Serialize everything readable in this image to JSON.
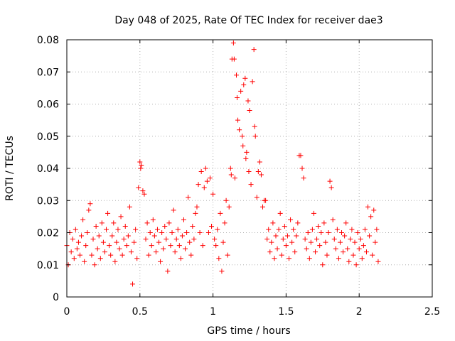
{
  "chart_data": {
    "type": "scatter",
    "title": "Day 048 of 2025, Rate Of TEC Index for receiver dae3",
    "xlabel": "GPS time / hours",
    "ylabel": "ROTI / TECUs",
    "xlim": [
      0,
      2.5
    ],
    "ylim": [
      0,
      0.08
    ],
    "x_ticks": [
      0,
      0.5,
      1,
      1.5,
      2,
      2.5
    ],
    "x_tick_labels": [
      "0",
      "0.5",
      "1",
      "1.5",
      "2",
      "2.5"
    ],
    "y_ticks": [
      0,
      0.01,
      0.02,
      0.03,
      0.04,
      0.05,
      0.06,
      0.07,
      0.08
    ],
    "y_tick_labels": [
      "0",
      "0.01",
      "0.02",
      "0.03",
      "0.04",
      "0.05",
      "0.06",
      "0.07",
      "0.08"
    ],
    "grid": true,
    "marker": "+",
    "color": "#ff0000",
    "series": [
      {
        "name": "ROTI",
        "points": [
          [
            0.0,
            0.016
          ],
          [
            0.01,
            0.01
          ],
          [
            0.02,
            0.02
          ],
          [
            0.03,
            0.014
          ],
          [
            0.04,
            0.018
          ],
          [
            0.05,
            0.012
          ],
          [
            0.06,
            0.021
          ],
          [
            0.07,
            0.015
          ],
          [
            0.08,
            0.017
          ],
          [
            0.09,
            0.013
          ],
          [
            0.1,
            0.019
          ],
          [
            0.11,
            0.024
          ],
          [
            0.12,
            0.011
          ],
          [
            0.13,
            0.016
          ],
          [
            0.14,
            0.02
          ],
          [
            0.15,
            0.027
          ],
          [
            0.16,
            0.029
          ],
          [
            0.17,
            0.013
          ],
          [
            0.18,
            0.018
          ],
          [
            0.19,
            0.01
          ],
          [
            0.2,
            0.022
          ],
          [
            0.21,
            0.015
          ],
          [
            0.22,
            0.019
          ],
          [
            0.23,
            0.012
          ],
          [
            0.24,
            0.023
          ],
          [
            0.25,
            0.017
          ],
          [
            0.26,
            0.014
          ],
          [
            0.27,
            0.021
          ],
          [
            0.28,
            0.026
          ],
          [
            0.29,
            0.016
          ],
          [
            0.3,
            0.013
          ],
          [
            0.31,
            0.019
          ],
          [
            0.32,
            0.023
          ],
          [
            0.33,
            0.011
          ],
          [
            0.34,
            0.017
          ],
          [
            0.35,
            0.021
          ],
          [
            0.36,
            0.015
          ],
          [
            0.37,
            0.025
          ],
          [
            0.38,
            0.013
          ],
          [
            0.39,
            0.018
          ],
          [
            0.4,
            0.022
          ],
          [
            0.41,
            0.016
          ],
          [
            0.42,
            0.019
          ],
          [
            0.43,
            0.028
          ],
          [
            0.44,
            0.014
          ],
          [
            0.45,
            0.004
          ],
          [
            0.46,
            0.017
          ],
          [
            0.47,
            0.021
          ],
          [
            0.48,
            0.012
          ],
          [
            0.49,
            0.034
          ],
          [
            0.5,
            0.042
          ],
          [
            0.505,
            0.04
          ],
          [
            0.51,
            0.041
          ],
          [
            0.52,
            0.033
          ],
          [
            0.53,
            0.032
          ],
          [
            0.54,
            0.018
          ],
          [
            0.55,
            0.023
          ],
          [
            0.56,
            0.013
          ],
          [
            0.57,
            0.02
          ],
          [
            0.58,
            0.016
          ],
          [
            0.59,
            0.024
          ],
          [
            0.6,
            0.019
          ],
          [
            0.61,
            0.014
          ],
          [
            0.62,
            0.021
          ],
          [
            0.63,
            0.017
          ],
          [
            0.64,
            0.011
          ],
          [
            0.65,
            0.02
          ],
          [
            0.66,
            0.015
          ],
          [
            0.67,
            0.022
          ],
          [
            0.68,
            0.018
          ],
          [
            0.69,
            0.008
          ],
          [
            0.7,
            0.023
          ],
          [
            0.71,
            0.016
          ],
          [
            0.72,
            0.02
          ],
          [
            0.73,
            0.027
          ],
          [
            0.74,
            0.014
          ],
          [
            0.75,
            0.018
          ],
          [
            0.76,
            0.021
          ],
          [
            0.77,
            0.016
          ],
          [
            0.78,
            0.012
          ],
          [
            0.79,
            0.019
          ],
          [
            0.8,
            0.024
          ],
          [
            0.81,
            0.015
          ],
          [
            0.82,
            0.02
          ],
          [
            0.83,
            0.031
          ],
          [
            0.84,
            0.017
          ],
          [
            0.85,
            0.013
          ],
          [
            0.86,
            0.022
          ],
          [
            0.87,
            0.018
          ],
          [
            0.88,
            0.026
          ],
          [
            0.89,
            0.028
          ],
          [
            0.9,
            0.035
          ],
          [
            0.91,
            0.02
          ],
          [
            0.92,
            0.039
          ],
          [
            0.93,
            0.016
          ],
          [
            0.94,
            0.034
          ],
          [
            0.95,
            0.04
          ],
          [
            0.96,
            0.036
          ],
          [
            0.97,
            0.02
          ],
          [
            0.98,
            0.037
          ],
          [
            0.99,
            0.022
          ],
          [
            1.0,
            0.032
          ],
          [
            1.01,
            0.018
          ],
          [
            1.02,
            0.016
          ],
          [
            1.03,
            0.021
          ],
          [
            1.04,
            0.012
          ],
          [
            1.05,
            0.026
          ],
          [
            1.06,
            0.008
          ],
          [
            1.07,
            0.017
          ],
          [
            1.08,
            0.023
          ],
          [
            1.09,
            0.03
          ],
          [
            1.1,
            0.013
          ],
          [
            1.11,
            0.028
          ],
          [
            1.12,
            0.04
          ],
          [
            1.125,
            0.038
          ],
          [
            1.13,
            0.074
          ],
          [
            1.14,
            0.079
          ],
          [
            1.145,
            0.074
          ],
          [
            1.15,
            0.037
          ],
          [
            1.16,
            0.069
          ],
          [
            1.165,
            0.062
          ],
          [
            1.17,
            0.055
          ],
          [
            1.18,
            0.052
          ],
          [
            1.19,
            0.064
          ],
          [
            1.2,
            0.05
          ],
          [
            1.205,
            0.047
          ],
          [
            1.21,
            0.066
          ],
          [
            1.22,
            0.068
          ],
          [
            1.225,
            0.043
          ],
          [
            1.23,
            0.045
          ],
          [
            1.24,
            0.061
          ],
          [
            1.245,
            0.039
          ],
          [
            1.25,
            0.058
          ],
          [
            1.26,
            0.035
          ],
          [
            1.27,
            0.067
          ],
          [
            1.28,
            0.077
          ],
          [
            1.285,
            0.053
          ],
          [
            1.29,
            0.05
          ],
          [
            1.3,
            0.031
          ],
          [
            1.31,
            0.039
          ],
          [
            1.32,
            0.042
          ],
          [
            1.33,
            0.038
          ],
          [
            1.34,
            0.028
          ],
          [
            1.35,
            0.03
          ],
          [
            1.36,
            0.03
          ],
          [
            1.37,
            0.018
          ],
          [
            1.38,
            0.021
          ],
          [
            1.39,
            0.014
          ],
          [
            1.4,
            0.017
          ],
          [
            1.41,
            0.023
          ],
          [
            1.42,
            0.012
          ],
          [
            1.43,
            0.019
          ],
          [
            1.44,
            0.015
          ],
          [
            1.45,
            0.021
          ],
          [
            1.46,
            0.026
          ],
          [
            1.47,
            0.013
          ],
          [
            1.48,
            0.018
          ],
          [
            1.49,
            0.022
          ],
          [
            1.5,
            0.016
          ],
          [
            1.51,
            0.019
          ],
          [
            1.52,
            0.012
          ],
          [
            1.53,
            0.024
          ],
          [
            1.54,
            0.017
          ],
          [
            1.55,
            0.021
          ],
          [
            1.56,
            0.014
          ],
          [
            1.57,
            0.019
          ],
          [
            1.58,
            0.023
          ],
          [
            1.59,
            0.044
          ],
          [
            1.6,
            0.044
          ],
          [
            1.61,
            0.04
          ],
          [
            1.62,
            0.037
          ],
          [
            1.63,
            0.018
          ],
          [
            1.64,
            0.015
          ],
          [
            1.65,
            0.02
          ],
          [
            1.66,
            0.012
          ],
          [
            1.67,
            0.017
          ],
          [
            1.68,
            0.021
          ],
          [
            1.69,
            0.026
          ],
          [
            1.7,
            0.014
          ],
          [
            1.71,
            0.018
          ],
          [
            1.72,
            0.022
          ],
          [
            1.73,
            0.016
          ],
          [
            1.74,
            0.02
          ],
          [
            1.75,
            0.01
          ],
          [
            1.76,
            0.023
          ],
          [
            1.77,
            0.017
          ],
          [
            1.78,
            0.013
          ],
          [
            1.79,
            0.02
          ],
          [
            1.8,
            0.036
          ],
          [
            1.81,
            0.034
          ],
          [
            1.82,
            0.024
          ],
          [
            1.83,
            0.018
          ],
          [
            1.84,
            0.015
          ],
          [
            1.85,
            0.021
          ],
          [
            1.86,
            0.012
          ],
          [
            1.87,
            0.017
          ],
          [
            1.88,
            0.02
          ],
          [
            1.89,
            0.014
          ],
          [
            1.9,
            0.019
          ],
          [
            1.91,
            0.023
          ],
          [
            1.92,
            0.015
          ],
          [
            1.93,
            0.011
          ],
          [
            1.94,
            0.018
          ],
          [
            1.95,
            0.021
          ],
          [
            1.96,
            0.013
          ],
          [
            1.97,
            0.017
          ],
          [
            1.98,
            0.01
          ],
          [
            1.99,
            0.02
          ],
          [
            2.0,
            0.015
          ],
          [
            2.01,
            0.018
          ],
          [
            2.02,
            0.012
          ],
          [
            2.03,
            0.016
          ],
          [
            2.04,
            0.021
          ],
          [
            2.05,
            0.014
          ],
          [
            2.06,
            0.028
          ],
          [
            2.07,
            0.019
          ],
          [
            2.08,
            0.025
          ],
          [
            2.09,
            0.013
          ],
          [
            2.1,
            0.027
          ],
          [
            2.11,
            0.017
          ],
          [
            2.12,
            0.021
          ],
          [
            2.13,
            0.011
          ]
        ]
      }
    ]
  }
}
